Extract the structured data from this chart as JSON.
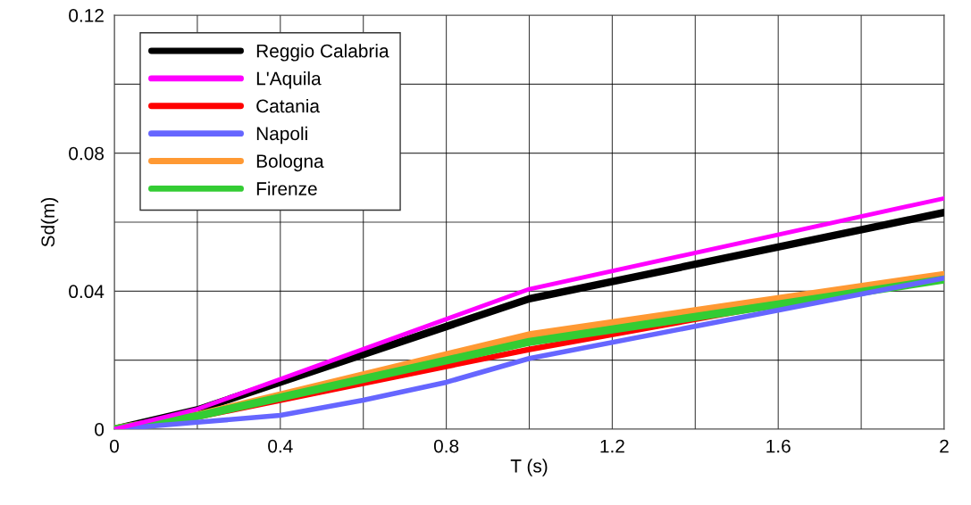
{
  "chart_data": {
    "type": "line",
    "xlabel": "T (s)",
    "ylabel": "Sd(m)",
    "xlim": [
      0,
      2
    ],
    "ylim": [
      0,
      0.12
    ],
    "xticks": [
      0,
      {
        "value": 0.2,
        "label": null
      },
      0.4,
      {
        "value": 0.6,
        "label": null
      },
      0.8,
      {
        "value": 1.0,
        "label": null
      },
      1.2,
      {
        "value": 1.4,
        "label": null
      },
      1.6,
      {
        "value": 1.8,
        "label": null
      },
      2
    ],
    "yticks": [
      0,
      {
        "value": 0.02,
        "label": null
      },
      0.04,
      {
        "value": 0.06,
        "label": null
      },
      0.08,
      {
        "value": 0.1,
        "label": null
      },
      0.12
    ],
    "grid": true,
    "legend": "top left",
    "marker": "none",
    "line_style": "solid",
    "series": [
      {
        "name": "Reggio Calabria",
        "color": "#000000",
        "x": [
          0,
          0.2,
          1.0,
          2.0
        ],
        "values": [
          0,
          0.0056,
          0.0378,
          0.0628
        ]
      },
      {
        "name": "L'Aquila",
        "color": "#ff00ff",
        "x": [
          0,
          0.2,
          1.0,
          2.0
        ],
        "values": [
          0,
          0.0058,
          0.0406,
          0.0669
        ]
      },
      {
        "name": "Catania",
        "color": "#ff0000",
        "x": [
          0,
          0.2,
          1.0,
          2.0
        ],
        "values": [
          0,
          0.0035,
          0.0231,
          0.0449
        ]
      },
      {
        "name": "Napoli",
        "color": "#6666ff",
        "x": [
          0,
          0.2,
          0.4,
          0.6,
          0.8,
          1.0,
          2.0
        ],
        "values": [
          0,
          0.002,
          0.004,
          0.0084,
          0.0136,
          0.0205,
          0.0438
        ]
      },
      {
        "name": "Bologna",
        "color": "#ff9933",
        "x": [
          0,
          0.2,
          1.0,
          2.0
        ],
        "values": [
          0,
          0.004,
          0.0272,
          0.0447
        ]
      },
      {
        "name": "Firenze",
        "color": "#33cc33",
        "x": [
          0,
          0.2,
          1.0,
          2.0
        ],
        "values": [
          0,
          0.0038,
          0.0253,
          0.0434
        ]
      }
    ]
  }
}
